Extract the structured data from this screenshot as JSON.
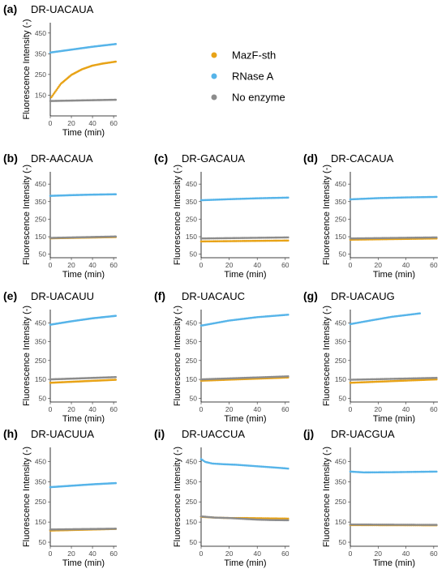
{
  "colors": {
    "MazF-sth": "#E8A317",
    "RNase A": "#56B4E9",
    "No enzyme": "#8C8C8C"
  },
  "legend": [
    {
      "name": "MazF-sth",
      "color": "#E8A317"
    },
    {
      "name": "RNase A",
      "color": "#56B4E9"
    },
    {
      "name": "No enzyme",
      "color": "#8C8C8C"
    }
  ],
  "chart_data": [
    {
      "panel": "(a)",
      "title": "DR-UACAUA",
      "type": "scatter",
      "xlabel": "Time (min)",
      "ylabel": "Fluorescence Intensity (-)",
      "xlim": [
        0,
        63
      ],
      "ylim": [
        50,
        500
      ],
      "xticks": [
        0,
        20,
        40,
        60
      ],
      "yticks": [
        150,
        250,
        350,
        450
      ],
      "ytick_labels": [
        "150",
        "250",
        "350",
        "450"
      ],
      "series": [
        {
          "name": "MazF-sth",
          "x": [
            1,
            10,
            20,
            30,
            40,
            50,
            62
          ],
          "y": [
            140,
            205,
            248,
            275,
            293,
            303,
            312
          ]
        },
        {
          "name": "RNase A",
          "x": [
            0,
            10,
            20,
            30,
            40,
            50,
            62
          ],
          "y": [
            356,
            363,
            370,
            377,
            384,
            390,
            397
          ]
        },
        {
          "name": "No enzyme",
          "x": [
            0,
            62
          ],
          "y": [
            122,
            128
          ]
        }
      ]
    },
    {
      "panel": "(b)",
      "title": "DR-AACAUA",
      "type": "scatter",
      "xlabel": "Time (min)",
      "ylabel": "Fluorescence Intensity (-)",
      "xlim": [
        0,
        63
      ],
      "ylim": [
        30,
        520
      ],
      "xticks": [
        0,
        20,
        40,
        60
      ],
      "yticks": [
        50,
        150,
        250,
        350,
        450
      ],
      "ytick_labels": [
        "50",
        "150",
        "250",
        "350",
        "450"
      ],
      "series": [
        {
          "name": "MazF-sth",
          "x": [
            0,
            62
          ],
          "y": [
            141,
            148
          ]
        },
        {
          "name": "RNase A",
          "x": [
            0,
            20,
            40,
            62
          ],
          "y": [
            383,
            387,
            390,
            392
          ]
        },
        {
          "name": "No enzyme",
          "x": [
            0,
            62
          ],
          "y": [
            143,
            151
          ]
        }
      ]
    },
    {
      "panel": "(c)",
      "title": "DR-GACAUA",
      "type": "scatter",
      "xlabel": "Time (min)",
      "ylabel": "Fluorescence Intensity (-)",
      "xlim": [
        0,
        63
      ],
      "ylim": [
        30,
        520
      ],
      "xticks": [
        0,
        20,
        40,
        60
      ],
      "yticks": [
        50,
        150,
        250,
        350,
        450
      ],
      "ytick_labels": [
        "50",
        "150",
        "250",
        "350",
        "450"
      ],
      "series": [
        {
          "name": "MazF-sth",
          "x": [
            0,
            62
          ],
          "y": [
            123,
            128
          ]
        },
        {
          "name": "RNase A",
          "x": [
            0,
            20,
            40,
            62
          ],
          "y": [
            358,
            364,
            369,
            373
          ]
        },
        {
          "name": "No enzyme",
          "x": [
            0,
            62
          ],
          "y": [
            140,
            146
          ]
        }
      ]
    },
    {
      "panel": "(d)",
      "title": "DR-CACAUA",
      "type": "scatter",
      "xlabel": "Time (min)",
      "ylabel": "Fluorescence Intensity (-)",
      "xlim": [
        0,
        63
      ],
      "ylim": [
        30,
        520
      ],
      "xticks": [
        0,
        20,
        40,
        60
      ],
      "yticks": [
        50,
        150,
        250,
        350,
        450
      ],
      "ytick_labels": [
        "50",
        "150",
        "250",
        "350",
        "450"
      ],
      "series": [
        {
          "name": "MazF-sth",
          "x": [
            0,
            62
          ],
          "y": [
            133,
            140
          ]
        },
        {
          "name": "RNase A",
          "x": [
            0,
            20,
            40,
            62
          ],
          "y": [
            363,
            370,
            374,
            377
          ]
        },
        {
          "name": "No enzyme",
          "x": [
            0,
            62
          ],
          "y": [
            140,
            146
          ]
        }
      ]
    },
    {
      "panel": "(e)",
      "title": "DR-UACAUU",
      "type": "scatter",
      "xlabel": "Time (min)",
      "ylabel": "Fluorescence Intensity (-)",
      "xlim": [
        0,
        63
      ],
      "ylim": [
        30,
        520
      ],
      "xticks": [
        0,
        20,
        40,
        60
      ],
      "yticks": [
        50,
        150,
        250,
        350,
        450
      ],
      "ytick_labels": [
        "50",
        "150",
        "250",
        "350",
        "450"
      ],
      "series": [
        {
          "name": "MazF-sth",
          "x": [
            0,
            62
          ],
          "y": [
            132,
            148
          ]
        },
        {
          "name": "RNase A",
          "x": [
            0,
            20,
            40,
            62
          ],
          "y": [
            440,
            458,
            474,
            487
          ]
        },
        {
          "name": "No enzyme",
          "x": [
            0,
            62
          ],
          "y": [
            150,
            162
          ]
        }
      ]
    },
    {
      "panel": "(f)",
      "title": "DR-UACAUC",
      "type": "scatter",
      "xlabel": "Time (min)",
      "ylabel": "Fluorescence Intensity (-)",
      "xlim": [
        0,
        63
      ],
      "ylim": [
        30,
        520
      ],
      "xticks": [
        0,
        20,
        40,
        60
      ],
      "yticks": [
        50,
        150,
        250,
        350,
        450
      ],
      "ytick_labels": [
        "50",
        "150",
        "250",
        "350",
        "450"
      ],
      "series": [
        {
          "name": "MazF-sth",
          "x": [
            0,
            62
          ],
          "y": [
            143,
            160
          ]
        },
        {
          "name": "RNase A",
          "x": [
            0,
            20,
            40,
            62
          ],
          "y": [
            435,
            462,
            480,
            493
          ]
        },
        {
          "name": "No enzyme",
          "x": [
            0,
            62
          ],
          "y": [
            150,
            166
          ]
        }
      ]
    },
    {
      "panel": "(g)",
      "title": "DR-UACAUG",
      "type": "scatter",
      "xlabel": "Time (min)",
      "ylabel": "Fluorescence Intensity (-)",
      "xlim": [
        0,
        63
      ],
      "ylim": [
        30,
        520
      ],
      "xticks": [
        0,
        20,
        40,
        60
      ],
      "yticks": [
        50,
        150,
        250,
        350,
        450
      ],
      "ytick_labels": [
        "50",
        "150",
        "250",
        "350",
        "450"
      ],
      "series": [
        {
          "name": "MazF-sth",
          "x": [
            0,
            62
          ],
          "y": [
            132,
            150
          ]
        },
        {
          "name": "RNase A",
          "x": [
            0,
            15,
            30,
            50
          ],
          "y": [
            443,
            463,
            482,
            500
          ]
        },
        {
          "name": "No enzyme",
          "x": [
            0,
            62
          ],
          "y": [
            148,
            158
          ]
        }
      ]
    },
    {
      "panel": "(h)",
      "title": "DR-UACUUA",
      "type": "scatter",
      "xlabel": "Time (min)",
      "ylabel": "Fluorescence Intensity (-)",
      "xlim": [
        0,
        63
      ],
      "ylim": [
        30,
        520
      ],
      "xticks": [
        0,
        20,
        40,
        60
      ],
      "yticks": [
        50,
        150,
        250,
        350,
        450
      ],
      "ytick_labels": [
        "50",
        "150",
        "250",
        "350",
        "450"
      ],
      "series": [
        {
          "name": "MazF-sth",
          "x": [
            0,
            62
          ],
          "y": [
            108,
            116
          ]
        },
        {
          "name": "RNase A",
          "x": [
            0,
            20,
            40,
            62
          ],
          "y": [
            323,
            330,
            337,
            343
          ]
        },
        {
          "name": "No enzyme",
          "x": [
            0,
            62
          ],
          "y": [
            113,
            117
          ]
        }
      ]
    },
    {
      "panel": "(i)",
      "title": "DR-UACCUA",
      "type": "scatter",
      "xlabel": "Time (min)",
      "ylabel": "Fluorescence Intensity (-)",
      "xlim": [
        0,
        63
      ],
      "ylim": [
        30,
        520
      ],
      "xticks": [
        0,
        20,
        40,
        60
      ],
      "yticks": [
        50,
        150,
        250,
        350,
        450
      ],
      "ytick_labels": [
        "50",
        "150",
        "250",
        "350",
        "450"
      ],
      "series": [
        {
          "name": "MazF-sth",
          "x": [
            0,
            10,
            20,
            30,
            40,
            50,
            62
          ],
          "y": [
            176,
            172,
            170,
            170,
            169,
            168,
            167
          ]
        },
        {
          "name": "RNase A",
          "x": [
            0,
            3,
            8,
            15,
            25,
            35,
            45,
            55,
            62
          ],
          "y": [
            462,
            448,
            440,
            437,
            434,
            429,
            424,
            419,
            415
          ]
        },
        {
          "name": "No enzyme",
          "x": [
            0,
            10,
            20,
            30,
            40,
            50,
            62
          ],
          "y": [
            178,
            172,
            170,
            166,
            162,
            160,
            159
          ]
        }
      ]
    },
    {
      "panel": "(j)",
      "title": "DR-UACGUA",
      "type": "scatter",
      "xlabel": "Time (min)",
      "ylabel": "Fluorescence Intensity (-)",
      "xlim": [
        0,
        63
      ],
      "ylim": [
        30,
        520
      ],
      "xticks": [
        0,
        20,
        40,
        60
      ],
      "yticks": [
        50,
        150,
        250,
        350,
        450
      ],
      "ytick_labels": [
        "50",
        "150",
        "250",
        "350",
        "450"
      ],
      "series": [
        {
          "name": "MazF-sth",
          "x": [
            0,
            62
          ],
          "y": [
            135,
            134
          ]
        },
        {
          "name": "RNase A",
          "x": [
            0,
            10,
            30,
            50,
            62
          ],
          "y": [
            400,
            396,
            397,
            399,
            400
          ]
        },
        {
          "name": "No enzyme",
          "x": [
            0,
            62
          ],
          "y": [
            138,
            136
          ]
        }
      ]
    }
  ]
}
